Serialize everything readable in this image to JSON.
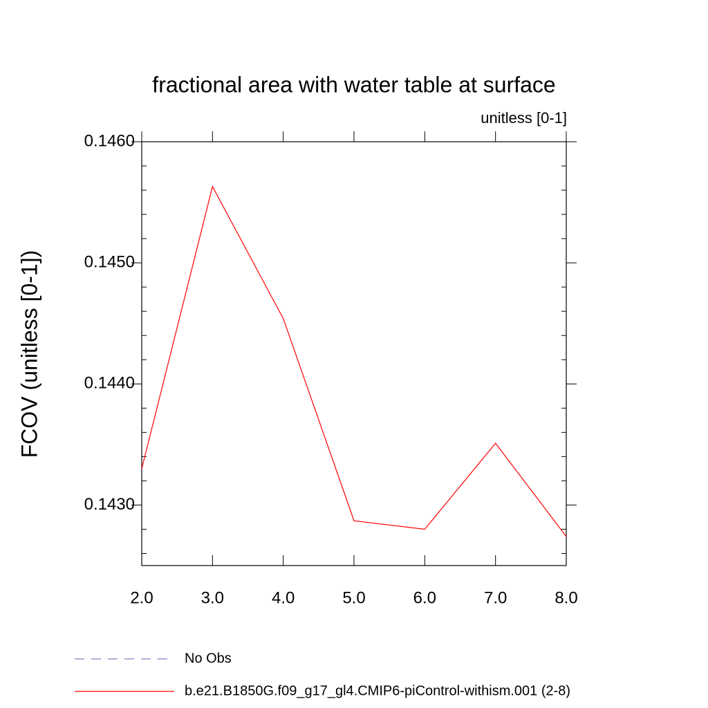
{
  "chart_data": {
    "type": "line",
    "title": "fractional area with water table at surface",
    "subtitle": "unitless [0-1]",
    "y_label": "FCOV  (unitless [0-1])",
    "x": [
      2,
      3,
      4,
      5,
      6,
      7,
      8
    ],
    "series": [
      {
        "name": "b.e21.B1850G.f09_g17_gl4.CMIP6-piControl-withism.001 (2-8)",
        "color": "#ff0000",
        "values": [
          0.1433,
          0.14563,
          0.14454,
          0.14287,
          0.1428,
          0.14351,
          0.14274
        ]
      }
    ],
    "legend_extra": [
      {
        "name": "No Obs",
        "color": "#8a7fc0",
        "dashed": true
      }
    ],
    "xlim": [
      2,
      8
    ],
    "xticks": [
      {
        "value": 2,
        "label": "2.0"
      },
      {
        "value": 3,
        "label": "3.0"
      },
      {
        "value": 4,
        "label": "4.0"
      },
      {
        "value": 5,
        "label": "5.0"
      },
      {
        "value": 6,
        "label": "6.0"
      },
      {
        "value": 7,
        "label": "7.0"
      },
      {
        "value": 8,
        "label": "8.0"
      }
    ],
    "ylim": [
      0.1425,
      0.146
    ],
    "yticks": [
      {
        "value": 0.143,
        "label": "0.1430"
      },
      {
        "value": 0.144,
        "label": "0.1440"
      },
      {
        "value": 0.145,
        "label": "0.1450"
      },
      {
        "value": 0.146,
        "label": "0.1460"
      }
    ],
    "yminorticks": [
      0.1426,
      0.1428,
      0.1432,
      0.1434,
      0.1436,
      0.1438,
      0.1442,
      0.1444,
      0.1446,
      0.1448,
      0.1452,
      0.1454,
      0.1456,
      0.1458
    ]
  }
}
